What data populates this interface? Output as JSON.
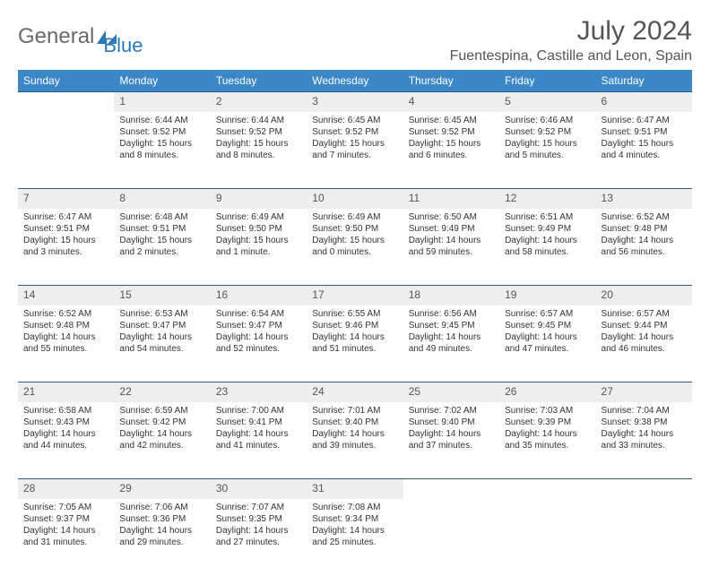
{
  "logo": {
    "word1": "General",
    "word2": "Blue"
  },
  "header": {
    "month_title": "July 2024",
    "location": "Fuentespina, Castille and Leon, Spain"
  },
  "colors": {
    "header_bg": "#3b87c8",
    "header_text": "#ffffff",
    "daynum_bg": "#eeeeee",
    "rule": "#2e5b82",
    "logo_gray": "#6a6a6a",
    "logo_blue": "#2e77b5",
    "text": "#333333"
  },
  "weekdays": [
    "Sunday",
    "Monday",
    "Tuesday",
    "Wednesday",
    "Thursday",
    "Friday",
    "Saturday"
  ],
  "weeks": [
    {
      "nums": [
        "",
        "1",
        "2",
        "3",
        "4",
        "5",
        "6"
      ],
      "cells": [
        null,
        {
          "sunrise": "Sunrise: 6:44 AM",
          "sunset": "Sunset: 9:52 PM",
          "day1": "Daylight: 15 hours",
          "day2": "and 8 minutes."
        },
        {
          "sunrise": "Sunrise: 6:44 AM",
          "sunset": "Sunset: 9:52 PM",
          "day1": "Daylight: 15 hours",
          "day2": "and 8 minutes."
        },
        {
          "sunrise": "Sunrise: 6:45 AM",
          "sunset": "Sunset: 9:52 PM",
          "day1": "Daylight: 15 hours",
          "day2": "and 7 minutes."
        },
        {
          "sunrise": "Sunrise: 6:45 AM",
          "sunset": "Sunset: 9:52 PM",
          "day1": "Daylight: 15 hours",
          "day2": "and 6 minutes."
        },
        {
          "sunrise": "Sunrise: 6:46 AM",
          "sunset": "Sunset: 9:52 PM",
          "day1": "Daylight: 15 hours",
          "day2": "and 5 minutes."
        },
        {
          "sunrise": "Sunrise: 6:47 AM",
          "sunset": "Sunset: 9:51 PM",
          "day1": "Daylight: 15 hours",
          "day2": "and 4 minutes."
        }
      ]
    },
    {
      "nums": [
        "7",
        "8",
        "9",
        "10",
        "11",
        "12",
        "13"
      ],
      "cells": [
        {
          "sunrise": "Sunrise: 6:47 AM",
          "sunset": "Sunset: 9:51 PM",
          "day1": "Daylight: 15 hours",
          "day2": "and 3 minutes."
        },
        {
          "sunrise": "Sunrise: 6:48 AM",
          "sunset": "Sunset: 9:51 PM",
          "day1": "Daylight: 15 hours",
          "day2": "and 2 minutes."
        },
        {
          "sunrise": "Sunrise: 6:49 AM",
          "sunset": "Sunset: 9:50 PM",
          "day1": "Daylight: 15 hours",
          "day2": "and 1 minute."
        },
        {
          "sunrise": "Sunrise: 6:49 AM",
          "sunset": "Sunset: 9:50 PM",
          "day1": "Daylight: 15 hours",
          "day2": "and 0 minutes."
        },
        {
          "sunrise": "Sunrise: 6:50 AM",
          "sunset": "Sunset: 9:49 PM",
          "day1": "Daylight: 14 hours",
          "day2": "and 59 minutes."
        },
        {
          "sunrise": "Sunrise: 6:51 AM",
          "sunset": "Sunset: 9:49 PM",
          "day1": "Daylight: 14 hours",
          "day2": "and 58 minutes."
        },
        {
          "sunrise": "Sunrise: 6:52 AM",
          "sunset": "Sunset: 9:48 PM",
          "day1": "Daylight: 14 hours",
          "day2": "and 56 minutes."
        }
      ]
    },
    {
      "nums": [
        "14",
        "15",
        "16",
        "17",
        "18",
        "19",
        "20"
      ],
      "cells": [
        {
          "sunrise": "Sunrise: 6:52 AM",
          "sunset": "Sunset: 9:48 PM",
          "day1": "Daylight: 14 hours",
          "day2": "and 55 minutes."
        },
        {
          "sunrise": "Sunrise: 6:53 AM",
          "sunset": "Sunset: 9:47 PM",
          "day1": "Daylight: 14 hours",
          "day2": "and 54 minutes."
        },
        {
          "sunrise": "Sunrise: 6:54 AM",
          "sunset": "Sunset: 9:47 PM",
          "day1": "Daylight: 14 hours",
          "day2": "and 52 minutes."
        },
        {
          "sunrise": "Sunrise: 6:55 AM",
          "sunset": "Sunset: 9:46 PM",
          "day1": "Daylight: 14 hours",
          "day2": "and 51 minutes."
        },
        {
          "sunrise": "Sunrise: 6:56 AM",
          "sunset": "Sunset: 9:45 PM",
          "day1": "Daylight: 14 hours",
          "day2": "and 49 minutes."
        },
        {
          "sunrise": "Sunrise: 6:57 AM",
          "sunset": "Sunset: 9:45 PM",
          "day1": "Daylight: 14 hours",
          "day2": "and 47 minutes."
        },
        {
          "sunrise": "Sunrise: 6:57 AM",
          "sunset": "Sunset: 9:44 PM",
          "day1": "Daylight: 14 hours",
          "day2": "and 46 minutes."
        }
      ]
    },
    {
      "nums": [
        "21",
        "22",
        "23",
        "24",
        "25",
        "26",
        "27"
      ],
      "cells": [
        {
          "sunrise": "Sunrise: 6:58 AM",
          "sunset": "Sunset: 9:43 PM",
          "day1": "Daylight: 14 hours",
          "day2": "and 44 minutes."
        },
        {
          "sunrise": "Sunrise: 6:59 AM",
          "sunset": "Sunset: 9:42 PM",
          "day1": "Daylight: 14 hours",
          "day2": "and 42 minutes."
        },
        {
          "sunrise": "Sunrise: 7:00 AM",
          "sunset": "Sunset: 9:41 PM",
          "day1": "Daylight: 14 hours",
          "day2": "and 41 minutes."
        },
        {
          "sunrise": "Sunrise: 7:01 AM",
          "sunset": "Sunset: 9:40 PM",
          "day1": "Daylight: 14 hours",
          "day2": "and 39 minutes."
        },
        {
          "sunrise": "Sunrise: 7:02 AM",
          "sunset": "Sunset: 9:40 PM",
          "day1": "Daylight: 14 hours",
          "day2": "and 37 minutes."
        },
        {
          "sunrise": "Sunrise: 7:03 AM",
          "sunset": "Sunset: 9:39 PM",
          "day1": "Daylight: 14 hours",
          "day2": "and 35 minutes."
        },
        {
          "sunrise": "Sunrise: 7:04 AM",
          "sunset": "Sunset: 9:38 PM",
          "day1": "Daylight: 14 hours",
          "day2": "and 33 minutes."
        }
      ]
    },
    {
      "nums": [
        "28",
        "29",
        "30",
        "31",
        "",
        "",
        ""
      ],
      "cells": [
        {
          "sunrise": "Sunrise: 7:05 AM",
          "sunset": "Sunset: 9:37 PM",
          "day1": "Daylight: 14 hours",
          "day2": "and 31 minutes."
        },
        {
          "sunrise": "Sunrise: 7:06 AM",
          "sunset": "Sunset: 9:36 PM",
          "day1": "Daylight: 14 hours",
          "day2": "and 29 minutes."
        },
        {
          "sunrise": "Sunrise: 7:07 AM",
          "sunset": "Sunset: 9:35 PM",
          "day1": "Daylight: 14 hours",
          "day2": "and 27 minutes."
        },
        {
          "sunrise": "Sunrise: 7:08 AM",
          "sunset": "Sunset: 9:34 PM",
          "day1": "Daylight: 14 hours",
          "day2": "and 25 minutes."
        },
        null,
        null,
        null
      ]
    }
  ]
}
